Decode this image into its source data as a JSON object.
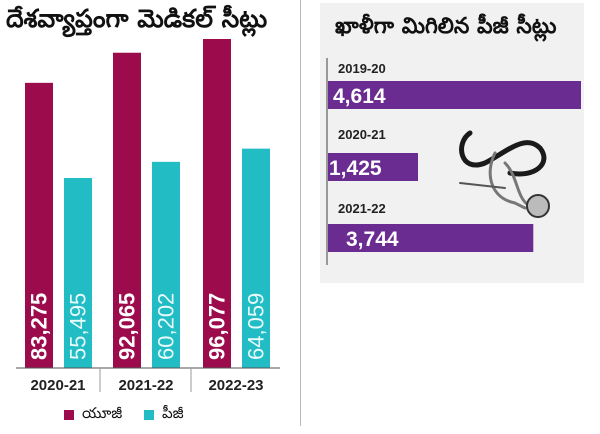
{
  "chart_data": [
    {
      "type": "bar",
      "title": "దేశవ్యాప్తంగా మెడికల్ సీట్లు",
      "categories": [
        "2020-21",
        "2021-22",
        "2022-23"
      ],
      "series": [
        {
          "name": "యూజీ",
          "color": "#9c0b4c",
          "values": [
            83275,
            92065,
            96077
          ],
          "labels": [
            "83,275",
            "92,065",
            "96,077"
          ]
        },
        {
          "name": "పీజీ",
          "color": "#21bcc4",
          "values": [
            55495,
            60202,
            64059
          ],
          "labels": [
            "55,495",
            "60,202",
            "64,059"
          ]
        }
      ],
      "ylim": [
        0,
        96077
      ],
      "grid": false,
      "legend": "bottom"
    },
    {
      "type": "bar",
      "orientation": "horizontal",
      "title": "ఖాళీగా మిగిలిన పీజీ సీట్లు",
      "categories": [
        "2019-20",
        "2020-21",
        "2021-22"
      ],
      "values": [
        4614,
        1425,
        3744
      ],
      "labels": [
        "4,614",
        "1,425",
        "3,744"
      ],
      "color": "#6a2c91",
      "illustration": "stethoscope-icon"
    }
  ]
}
